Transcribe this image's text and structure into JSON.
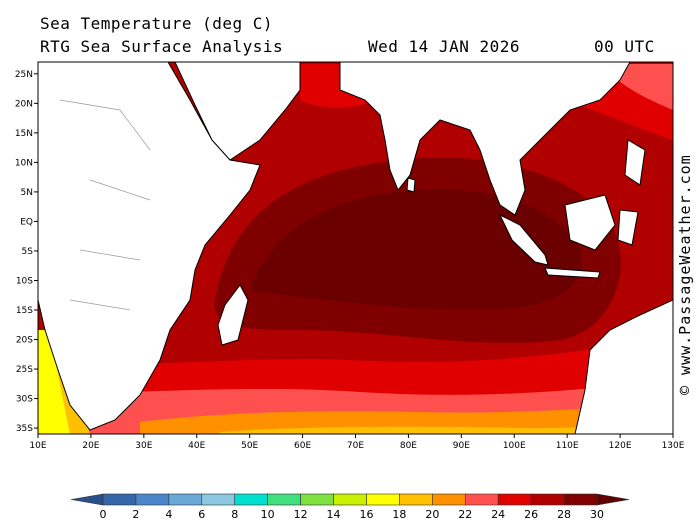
{
  "header": {
    "title": "Sea Temperature (deg C)",
    "subtitle": "RTG Sea Surface Analysis",
    "date": "Wed 14 JAN 2026",
    "time": "00 UTC"
  },
  "credit": "© www.PassageWeather.com",
  "map": {
    "lon_range": [
      10,
      130
    ],
    "lat_range": [
      -36,
      27
    ],
    "lon_ticks": [
      "10E",
      "20E",
      "30E",
      "40E",
      "50E",
      "60E",
      "70E",
      "80E",
      "90E",
      "100E",
      "110E",
      "120E",
      "130E"
    ],
    "lat_ticks": [
      "25N",
      "20N",
      "15N",
      "10N",
      "5N",
      "EQ",
      "5S",
      "10S",
      "15S",
      "20S",
      "25S",
      "30S",
      "35S"
    ]
  },
  "legend": {
    "labels": [
      "0",
      "2",
      "4",
      "6",
      "8",
      "10",
      "12",
      "14",
      "16",
      "18",
      "20",
      "22",
      "24",
      "26",
      "28",
      "30"
    ],
    "colors": [
      "#2a4f8c",
      "#3566a8",
      "#4a86c8",
      "#6aa8d8",
      "#8cc8e0",
      "#00e0d0",
      "#40e080",
      "#80e040",
      "#c8f000",
      "#ffff00",
      "#ffc000",
      "#ff9000",
      "#ff5050",
      "#e00000",
      "#b00000",
      "#800000",
      "#600000"
    ]
  }
}
